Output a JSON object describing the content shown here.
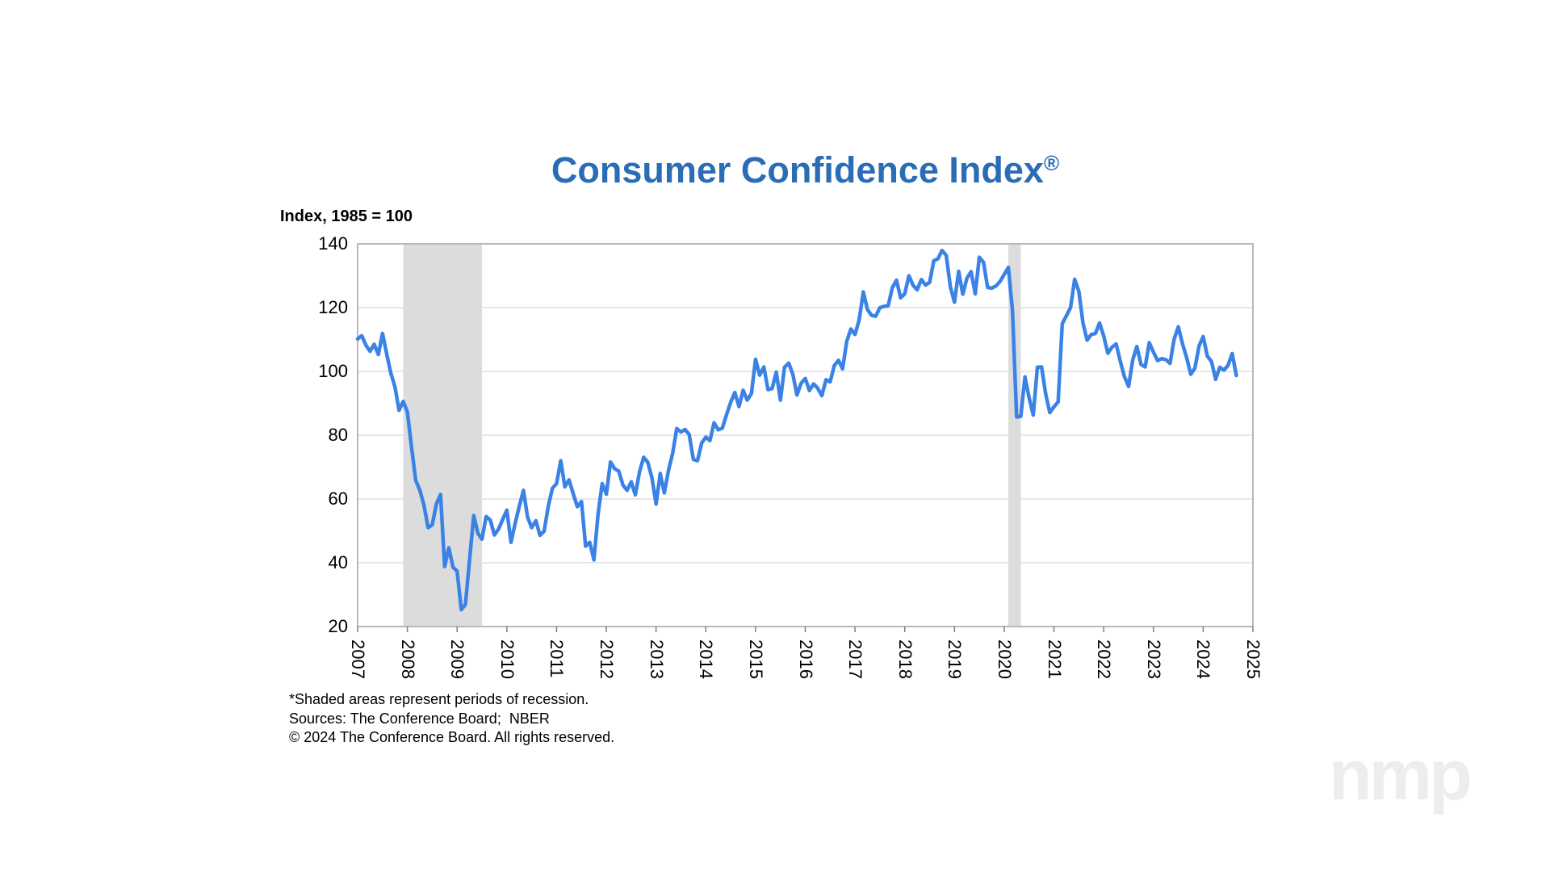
{
  "header": {
    "title": "Consumer Confidence Index",
    "title_registered": "®",
    "subtitle": "Index, 1985 = 100"
  },
  "footnotes": {
    "line1": "*Shaded areas represent periods of recession.",
    "line2": "Sources: The Conference Board;  NBER",
    "line3": "© 2024 The Conference Board. All rights reserved."
  },
  "watermark": "nmp",
  "colors": {
    "title_blue": "#2a6cb5",
    "line_blue": "#3b82e6",
    "recession_band": "#dcdcdc",
    "gridline": "#dfdfdf",
    "plot_border": "#b8b8b8",
    "axis_tick": "#7f7f7f",
    "watermark_gray": "#ededed"
  },
  "chart_data": {
    "type": "line",
    "title": "Consumer Confidence Index®",
    "ylabel": "Index, 1985 = 100",
    "xlabel": "",
    "frequency": "monthly",
    "start": "2007-01",
    "end": "2024-09",
    "x_ticks": [
      "2007",
      "2008",
      "2009",
      "2010",
      "2011",
      "2012",
      "2013",
      "2014",
      "2015",
      "2016",
      "2017",
      "2018",
      "2019",
      "2020",
      "2021",
      "2022",
      "2023",
      "2024",
      "2025"
    ],
    "y_ticks": [
      20,
      40,
      60,
      80,
      100,
      120,
      140
    ],
    "ylim": [
      20,
      140
    ],
    "grid": "horizontal",
    "legend": "none",
    "recession_bands": [
      {
        "start": "2007-12",
        "end": "2009-06"
      },
      {
        "start": "2020-02",
        "end": "2020-04"
      }
    ],
    "series": [
      {
        "name": "Consumer Confidence Index",
        "color": "#3b82e6",
        "values": [
          110.2,
          111.2,
          108.2,
          106.3,
          108.5,
          105.3,
          111.9,
          105.6,
          99.5,
          95.2,
          87.8,
          90.6,
          87.3,
          76.4,
          65.9,
          62.8,
          58.1,
          51.0,
          51.9,
          58.5,
          61.4,
          38.8,
          44.7,
          38.6,
          37.4,
          25.3,
          26.9,
          40.8,
          54.8,
          49.3,
          47.4,
          54.5,
          53.4,
          48.7,
          50.6,
          53.6,
          56.5,
          46.4,
          52.3,
          57.7,
          62.7,
          54.3,
          51.0,
          53.2,
          48.6,
          49.9,
          57.8,
          63.4,
          64.8,
          72.0,
          63.8,
          66.0,
          61.7,
          57.6,
          59.2,
          45.2,
          46.4,
          40.9,
          55.2,
          64.8,
          61.5,
          71.6,
          69.5,
          68.7,
          64.4,
          62.7,
          65.4,
          61.3,
          68.4,
          73.1,
          71.5,
          66.7,
          58.4,
          68.0,
          61.9,
          69.0,
          74.3,
          82.1,
          81.0,
          81.8,
          80.2,
          72.4,
          72.0,
          77.5,
          79.4,
          78.3,
          83.9,
          81.7,
          82.2,
          86.4,
          90.3,
          93.4,
          89.0,
          94.1,
          91.0,
          93.1,
          103.8,
          98.8,
          101.4,
          94.3,
          94.6,
          99.8,
          91.0,
          101.3,
          102.6,
          99.1,
          92.6,
          96.3,
          97.8,
          94.0,
          96.1,
          94.7,
          92.4,
          97.4,
          96.7,
          101.8,
          103.5,
          100.8,
          109.4,
          113.3,
          111.6,
          116.1,
          124.9,
          119.4,
          117.6,
          117.3,
          120.0,
          120.4,
          120.6,
          126.2,
          128.6,
          123.1,
          124.3,
          130.0,
          127.0,
          125.6,
          128.8,
          127.1,
          127.9,
          134.7,
          135.3,
          137.9,
          136.4,
          126.6,
          121.7,
          131.4,
          124.2,
          129.2,
          131.3,
          124.3,
          135.8,
          134.2,
          126.3,
          126.1,
          126.8,
          128.2,
          130.4,
          132.6,
          118.8,
          85.7,
          85.9,
          98.3,
          91.7,
          86.3,
          101.3,
          101.4,
          92.9,
          87.1,
          88.9,
          90.4,
          114.9,
          117.5,
          120.0,
          128.9,
          125.1,
          115.2,
          109.8,
          111.6,
          111.9,
          115.2,
          111.1,
          105.7,
          107.6,
          108.6,
          103.2,
          98.4,
          95.3,
          103.6,
          107.8,
          102.2,
          101.4,
          109.0,
          106.0,
          103.4,
          104.0,
          103.7,
          102.5,
          110.1,
          114.0,
          108.7,
          104.3,
          99.1,
          101.0,
          108.0,
          110.9,
          104.8,
          103.1,
          97.5,
          101.3,
          100.4,
          101.9,
          105.6,
          98.7
        ]
      }
    ]
  }
}
